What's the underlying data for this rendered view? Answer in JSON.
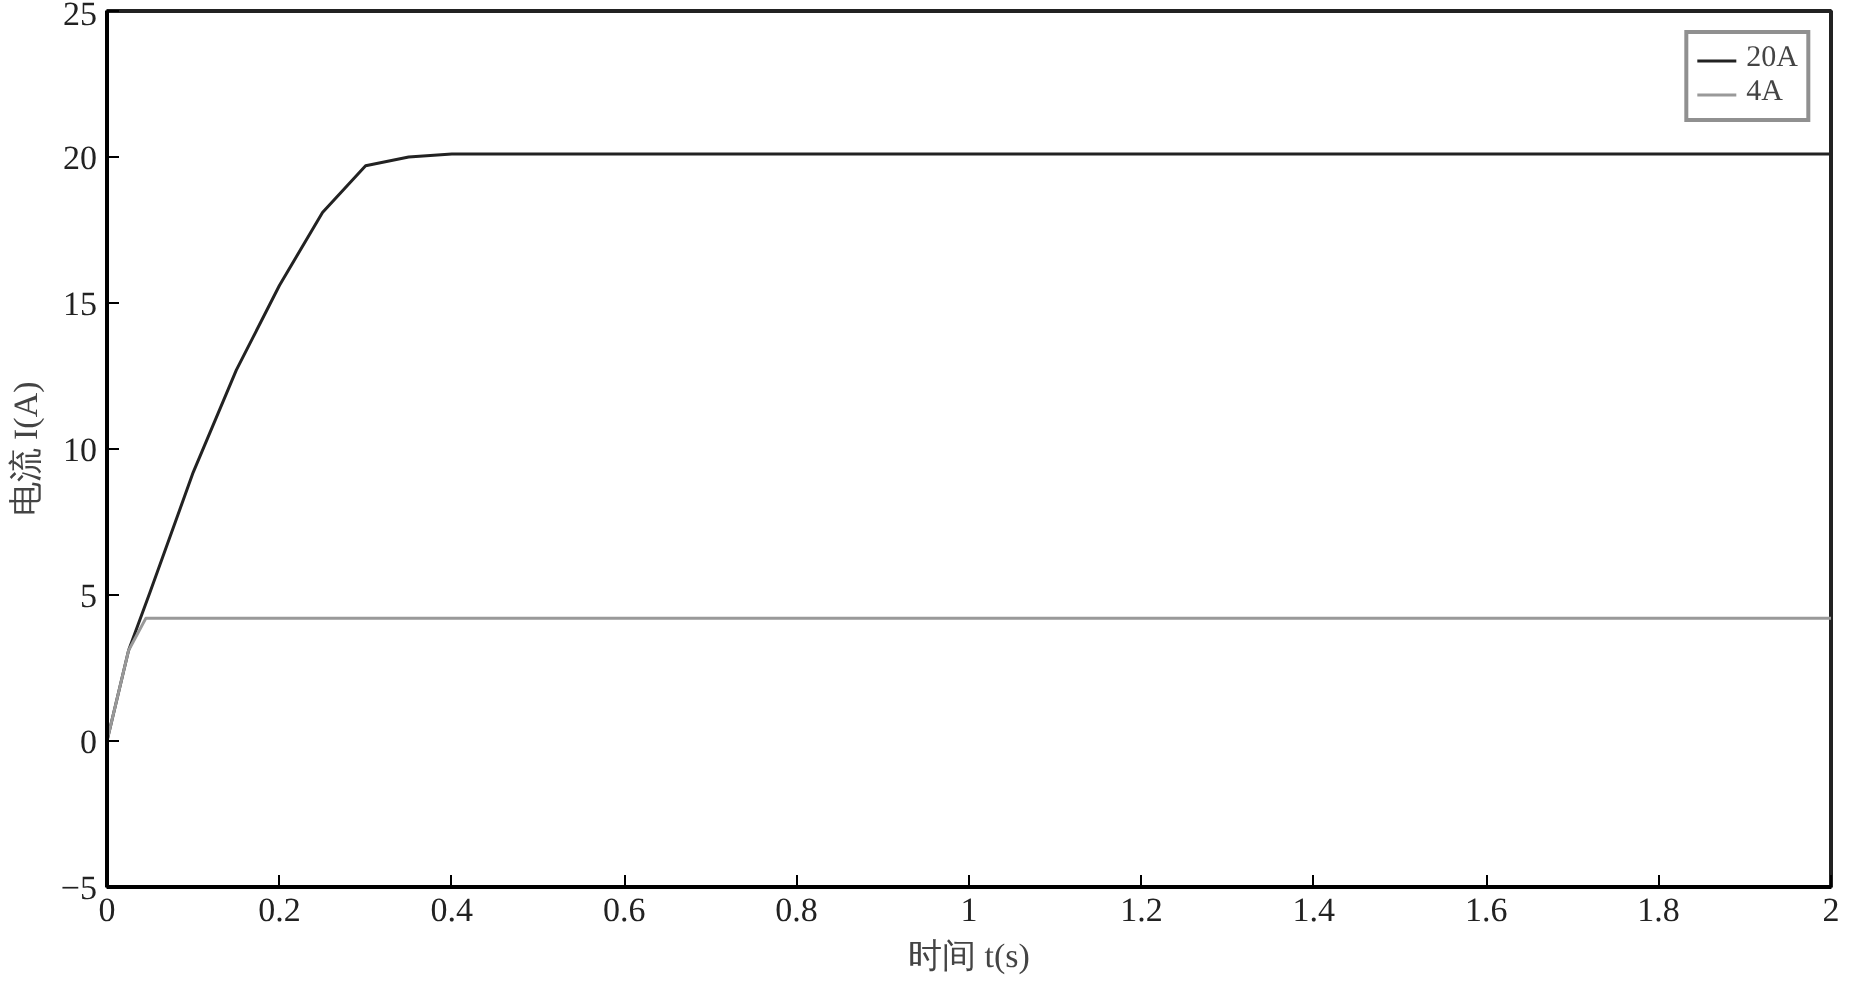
{
  "chart_data": {
    "type": "line",
    "xlabel": "时间 t(s)",
    "ylabel": "电流 I(A)",
    "xlim": [
      0,
      2
    ],
    "ylim": [
      -5,
      25
    ],
    "xticks": [
      0,
      0.2,
      0.4,
      0.6,
      0.8,
      1,
      1.2,
      1.4,
      1.6,
      1.8,
      2
    ],
    "yticks": [
      -5,
      0,
      5,
      10,
      15,
      20,
      25
    ],
    "grid": false,
    "legend": "top right",
    "marker": "none",
    "line_style": "solid",
    "series": [
      {
        "name": "20A",
        "color": "#222222",
        "x": [
          0,
          0.025,
          0.05,
          0.1,
          0.15,
          0.2,
          0.25,
          0.3,
          0.35,
          0.4,
          0.6,
          0.8,
          1,
          1.2,
          1.4,
          1.6,
          1.8,
          2
        ],
        "values": [
          0,
          3.1,
          5.1,
          9.2,
          12.7,
          15.6,
          18.1,
          19.7,
          20.0,
          20.1,
          20.1,
          20.1,
          20.1,
          20.1,
          20.1,
          20.1,
          20.1,
          20.1
        ]
      },
      {
        "name": "4A",
        "color": "#999999",
        "x": [
          0,
          0.025,
          0.045,
          0.1,
          0.5,
          1,
          1.5,
          2
        ],
        "values": [
          0,
          3.1,
          4.2,
          4.2,
          4.2,
          4.2,
          4.2,
          4.2
        ]
      }
    ]
  }
}
